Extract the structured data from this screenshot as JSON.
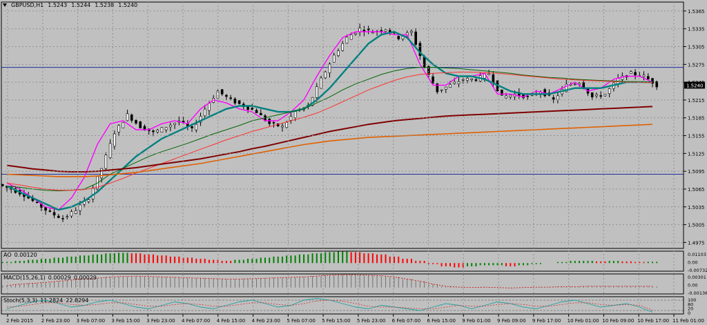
{
  "title": {
    "symbol": "GBPUSD,H1",
    "ohlc": [
      "1.5243",
      "1.5244",
      "1.5238",
      "1.5240"
    ]
  },
  "price_tag": "1.5240",
  "price_axis": [
    "1.5365",
    "1.5335",
    "1.5305",
    "1.5275",
    "1.5245",
    "1.5215",
    "1.5185",
    "1.5155",
    "1.5125",
    "1.5095",
    "1.5065",
    "1.5035",
    "1.5005",
    "1.4975"
  ],
  "time_axis": [
    "2 Feb 2015",
    "2 Feb 23:00",
    "3 Feb 07:00",
    "3 Feb 15:00",
    "3 Feb 23:00",
    "4 Feb 07:00",
    "4 Feb 15:00",
    "4 Feb 23:00",
    "5 Feb 07:00",
    "5 Feb 15:00",
    "5 Feb 23:00",
    "6 Feb 07:00",
    "6 Feb 15:00",
    "9 Feb 01:00",
    "9 Feb 09:00",
    "9 Feb 17:00",
    "10 Feb 01:00",
    "10 Feb 09:00",
    "10 Feb 17:00",
    "11 Feb 01:00"
  ],
  "indicators": {
    "ao": {
      "label": "AO",
      "value": "0.00120",
      "axis": [
        "0.01103",
        "0.00",
        "-0.00732"
      ]
    },
    "macd": {
      "label": "MACD(15,26,1)",
      "values": [
        "0.00029",
        "0.00029"
      ],
      "axis": [
        "0.00301",
        "0.00",
        "-0.00136"
      ]
    },
    "stoch": {
      "label": "Stoch(5,3,3)",
      "values": [
        "11.2824",
        "22.8294"
      ],
      "axis": [
        "100",
        "80",
        "20",
        "0"
      ]
    }
  },
  "colors": {
    "background": "#c0c0c0",
    "grid": "#909090",
    "bull_candle": "#ffffff",
    "bear_candle": "#000000",
    "ma_fast": "#ff00ff",
    "ma_teal": "#008080",
    "ma_green": "#006400",
    "ma_red": "#ff3030",
    "ma_maroon": "#800000",
    "ma_orange": "#e06000",
    "hline": "#1c2fa0",
    "ao_up": "#008000",
    "ao_down": "#ff0000"
  },
  "chart_data": {
    "type": "candlestick",
    "title": "GBPUSD,H1",
    "ylim": [
      1.4965,
      1.538
    ],
    "close_approx": [
      1.5065,
      1.5055,
      1.504,
      1.5025,
      1.5015,
      1.503,
      1.505,
      1.51,
      1.516,
      1.519,
      1.517,
      1.516,
      1.517,
      1.518,
      1.5165,
      1.52,
      1.523,
      1.5215,
      1.5205,
      1.5195,
      1.5175,
      1.517,
      1.5195,
      1.5205,
      1.525,
      1.529,
      1.532,
      1.5335,
      1.533,
      1.5335,
      1.532,
      1.533,
      1.527,
      1.523,
      1.524,
      1.525,
      1.525,
      1.526,
      1.522,
      1.5225,
      1.522,
      1.523,
      1.5215,
      1.524,
      1.5245,
      1.522,
      1.5225,
      1.525,
      1.526,
      1.5255,
      1.524
    ],
    "hlines": [
      1.527,
      1.509
    ],
    "ma_series": [
      {
        "values": [
          1.5075,
          1.5065,
          1.505,
          1.5035,
          1.503,
          1.505,
          1.5085,
          1.514,
          1.5175,
          1.518,
          1.5165,
          1.5165,
          1.5175,
          1.518,
          1.5175,
          1.52,
          1.5215,
          1.521,
          1.52,
          1.5195,
          1.518,
          1.518,
          1.5195,
          1.5215,
          1.5255,
          1.529,
          1.532,
          1.533,
          1.533,
          1.533,
          1.5325,
          1.5325,
          1.5275,
          1.524,
          1.524,
          1.5255,
          1.5255,
          1.526,
          1.5225,
          1.5225,
          1.522,
          1.523,
          1.5225,
          1.5235,
          1.5245,
          1.523,
          1.5235,
          1.525,
          1.5255,
          1.5255,
          1.5245
        ]
      },
      {
        "values": [
          1.507,
          1.506,
          1.505,
          1.504,
          1.503,
          1.5035,
          1.5045,
          1.506,
          1.508,
          1.51,
          1.512,
          1.5135,
          1.515,
          1.516,
          1.517,
          1.518,
          1.519,
          1.52,
          1.5205,
          1.5205,
          1.52,
          1.5195,
          1.5195,
          1.52,
          1.5215,
          1.5235,
          1.526,
          1.5285,
          1.531,
          1.5325,
          1.533,
          1.532,
          1.5295,
          1.5275,
          1.526,
          1.5255,
          1.5255,
          1.525,
          1.524,
          1.523,
          1.5225,
          1.5225,
          1.5225,
          1.523,
          1.5235,
          1.5235,
          1.5235,
          1.524,
          1.5245,
          1.5245,
          1.5245
        ]
      },
      {
        "values": [
          1.507,
          1.5068,
          1.5065,
          1.5063,
          1.5062,
          1.5063,
          1.5065,
          1.5075,
          1.509,
          1.51,
          1.511,
          1.512,
          1.5128,
          1.5135,
          1.5142,
          1.515,
          1.5158,
          1.5165,
          1.5172,
          1.518,
          1.5185,
          1.519,
          1.5195,
          1.52,
          1.521,
          1.522,
          1.5232,
          1.5242,
          1.525,
          1.5258,
          1.5264,
          1.5268,
          1.527,
          1.527,
          1.5269,
          1.5268,
          1.5266,
          1.5264,
          1.5262,
          1.526,
          1.5257,
          1.5255,
          1.5253,
          1.5252,
          1.525,
          1.5249,
          1.5248,
          1.5247,
          1.5246,
          1.5246,
          1.5245
        ]
      },
      {
        "values": [
          1.5075,
          1.5072,
          1.5068,
          1.5065,
          1.5063,
          1.5063,
          1.5064,
          1.5068,
          1.5075,
          1.5083,
          1.5092,
          1.51,
          1.5108,
          1.5116,
          1.5124,
          1.5132,
          1.514,
          1.5148,
          1.5155,
          1.5162,
          1.5168,
          1.5174,
          1.518,
          1.5186,
          1.5193,
          1.5202,
          1.5212,
          1.5222,
          1.5232,
          1.524,
          1.5248,
          1.5254,
          1.5258,
          1.526,
          1.5261,
          1.5262,
          1.5262,
          1.5261,
          1.526,
          1.5258,
          1.5256,
          1.5254,
          1.5252,
          1.525,
          1.5249,
          1.5248,
          1.5247,
          1.5246,
          1.5245,
          1.5245,
          1.5244
        ]
      },
      {
        "values": [
          1.5105,
          1.5102,
          1.5099,
          1.5097,
          1.5095,
          1.5094,
          1.5094,
          1.5095,
          1.5097,
          1.5099,
          1.5101,
          1.5104,
          1.5107,
          1.511,
          1.5113,
          1.5116,
          1.512,
          1.5124,
          1.5128,
          1.5133,
          1.5137,
          1.5142,
          1.5147,
          1.5152,
          1.5157,
          1.5162,
          1.5166,
          1.517,
          1.5174,
          1.5177,
          1.518,
          1.5182,
          1.5184,
          1.5186,
          1.5188,
          1.5189,
          1.519,
          1.5191,
          1.5192,
          1.5193,
          1.5194,
          1.5195,
          1.5196,
          1.5197,
          1.5198,
          1.5199,
          1.52,
          1.5201,
          1.5202,
          1.5203,
          1.5204
        ]
      },
      {
        "values": [
          1.509,
          1.5089,
          1.5088,
          1.5087,
          1.5086,
          1.5086,
          1.5086,
          1.5087,
          1.5089,
          1.5091,
          1.5093,
          1.5096,
          1.5099,
          1.5102,
          1.5105,
          1.5108,
          1.5112,
          1.5116,
          1.512,
          1.5124,
          1.5128,
          1.5132,
          1.5136,
          1.514,
          1.5143,
          1.5146,
          1.5148,
          1.515,
          1.5152,
          1.5153,
          1.5154,
          1.5155,
          1.5156,
          1.5157,
          1.5158,
          1.5159,
          1.516,
          1.5161,
          1.5162,
          1.5163,
          1.5164,
          1.5165,
          1.5166,
          1.5167,
          1.5168,
          1.5169,
          1.517,
          1.5171,
          1.5172,
          1.5173,
          1.5174
        ]
      }
    ],
    "ao_values": [
      0.001,
      0.002,
      0.003,
      0.004,
      0.005,
      0.006,
      0.007,
      0.008,
      0.009,
      0.0095,
      0.009,
      0.008,
      0.007,
      0.006,
      0.005,
      0.004,
      0.003,
      0.002,
      0.003,
      0.004,
      0.005,
      0.006,
      0.007,
      0.008,
      0.009,
      0.01,
      0.011,
      0.01,
      0.009,
      0.008,
      0.006,
      0.004,
      0.002,
      -0.001,
      -0.003,
      -0.004,
      -0.003,
      -0.002,
      -0.002,
      -0.003,
      -0.002,
      -0.001,
      0.0,
      0.001,
      0.002,
      0.002,
      0.0015,
      0.002,
      0.0015,
      0.001,
      0.0012
    ],
    "macd_values": [
      0.0005,
      0.0008,
      0.001,
      0.0012,
      0.0015,
      0.0018,
      0.002,
      0.0022,
      0.0025,
      0.0026,
      0.0027,
      0.0026,
      0.0025,
      0.0024,
      0.0023,
      0.0022,
      0.0021,
      0.002,
      0.002,
      0.0021,
      0.0022,
      0.0023,
      0.0024,
      0.0025,
      0.0027,
      0.0029,
      0.003,
      0.003,
      0.0029,
      0.0028,
      0.0025,
      0.002,
      0.0015,
      0.0008,
      0.0003,
      0.0001,
      0.0,
      0.0001,
      0.0,
      -0.0001,
      0.0,
      0.0001,
      0.0001,
      0.0002,
      0.0002,
      0.0003,
      0.0003,
      0.0003,
      0.0003,
      0.0003,
      0.0003
    ],
    "stoch_k": [
      30,
      50,
      70,
      80,
      60,
      40,
      50,
      70,
      80,
      60,
      40,
      30,
      50,
      70,
      60,
      40,
      30,
      50,
      70,
      80,
      60,
      40,
      50,
      80,
      90,
      80,
      60,
      40,
      30,
      50,
      40,
      30,
      20,
      40,
      60,
      50,
      30,
      50,
      70,
      60,
      40,
      30,
      50,
      70,
      80,
      60,
      40,
      50,
      60,
      40,
      11
    ],
    "stoch_d": [
      40,
      45,
      55,
      65,
      65,
      55,
      50,
      55,
      65,
      65,
      55,
      45,
      45,
      55,
      60,
      55,
      45,
      45,
      55,
      65,
      65,
      55,
      50,
      60,
      75,
      80,
      75,
      60,
      45,
      40,
      40,
      35,
      30,
      30,
      40,
      50,
      45,
      45,
      55,
      60,
      55,
      45,
      45,
      55,
      65,
      65,
      55,
      50,
      55,
      50,
      23
    ]
  }
}
